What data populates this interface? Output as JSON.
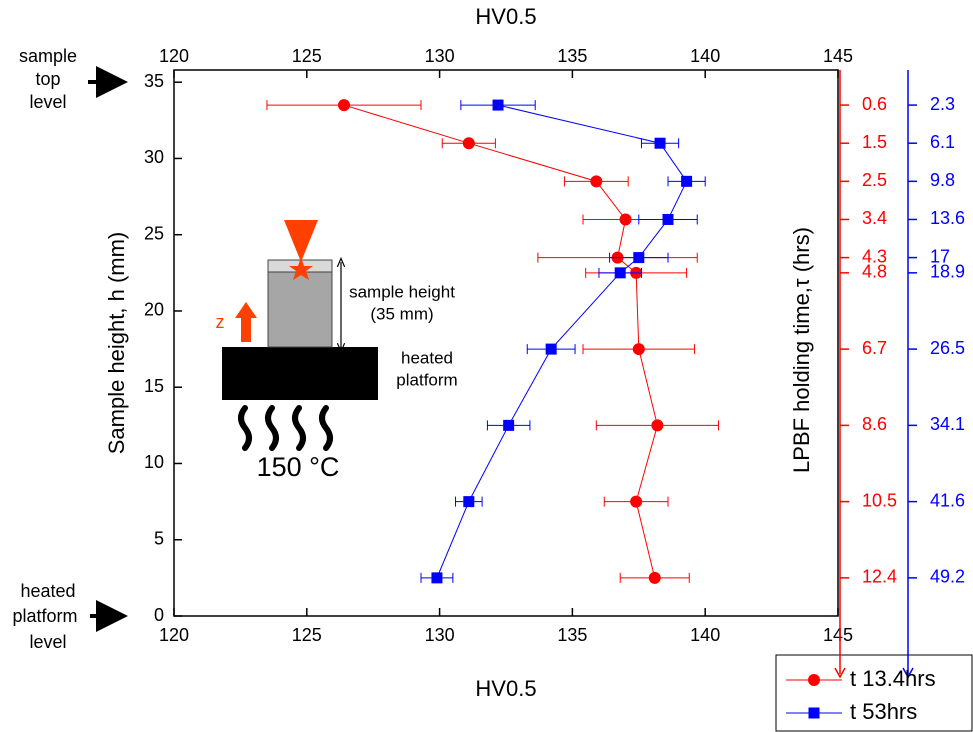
{
  "chart_data": {
    "type": "scatter-line",
    "x_label_top": "HV0.5",
    "x_label_bottom": "HV0.5",
    "y_label": "Sample height, h (mm)",
    "xlim": [
      120,
      145
    ],
    "xticks": [
      120,
      125,
      130,
      135,
      140,
      145
    ],
    "ylim": [
      0,
      35.8
    ],
    "yticks": [
      0,
      5,
      10,
      15,
      20,
      25,
      30,
      35
    ],
    "heights": [
      33.5,
      31,
      28.5,
      26,
      23.5,
      22.5,
      17.5,
      12.5,
      7.5,
      2.5
    ],
    "series": [
      {
        "name": "t 13.4hrs",
        "color": "#ff0000",
        "marker": "circle",
        "values": [
          126.4,
          131.1,
          135.9,
          137.0,
          136.7,
          137.4,
          137.5,
          138.2,
          137.4,
          138.1
        ],
        "errors": [
          2.9,
          1.0,
          1.2,
          1.6,
          3.0,
          1.9,
          2.1,
          2.3,
          1.2,
          1.3
        ]
      },
      {
        "name": "t 53hrs",
        "color": "#0000ff",
        "marker": "square",
        "values": [
          132.2,
          138.3,
          139.3,
          138.6,
          137.5,
          136.8,
          134.2,
          132.6,
          131.1,
          129.9
        ],
        "errors": [
          1.4,
          0.7,
          0.7,
          1.1,
          1.1,
          0.8,
          0.9,
          0.8,
          0.5,
          0.6
        ]
      }
    ],
    "tau_label": "LPBF holding time,τ (hrs)",
    "tau_axes": [
      {
        "color": "#ff0000",
        "ticks": [
          {
            "value": 33.5,
            "label": "0.6"
          },
          {
            "value": 31,
            "label": "1.5"
          },
          {
            "value": 28.5,
            "label": "2.5"
          },
          {
            "value": 26,
            "label": "3.4"
          },
          {
            "value": 23.5,
            "label": "4.3"
          },
          {
            "value": 22.5,
            "label": "4.8"
          },
          {
            "value": 17.5,
            "label": "6.7"
          },
          {
            "value": 12.5,
            "label": "8.6"
          },
          {
            "value": 7.5,
            "label": "10.5"
          },
          {
            "value": 2.5,
            "label": "12.4"
          }
        ]
      },
      {
        "color": "#0000ff",
        "ticks": [
          {
            "value": 33.5,
            "label": "2.3"
          },
          {
            "value": 31,
            "label": "6.1"
          },
          {
            "value": 28.5,
            "label": "9.8"
          },
          {
            "value": 26,
            "label": "13.6"
          },
          {
            "value": 23.5,
            "label": "17"
          },
          {
            "value": 22.5,
            "label": "18.9"
          },
          {
            "value": 17.5,
            "label": "26.5"
          },
          {
            "value": 12.5,
            "label": "34.1"
          },
          {
            "value": 7.5,
            "label": "41.6"
          },
          {
            "value": 2.5,
            "label": "49.2"
          }
        ]
      }
    ],
    "annotations": {
      "top_level": [
        "sample",
        "top",
        "level"
      ],
      "platform_level": [
        "heated",
        "platform",
        "level"
      ],
      "inset": {
        "sample_height": "sample height",
        "sample_height_value": "(35 mm)",
        "platform": [
          "heated",
          "platform"
        ],
        "axis": "z",
        "temperature": "150 °C"
      }
    }
  }
}
